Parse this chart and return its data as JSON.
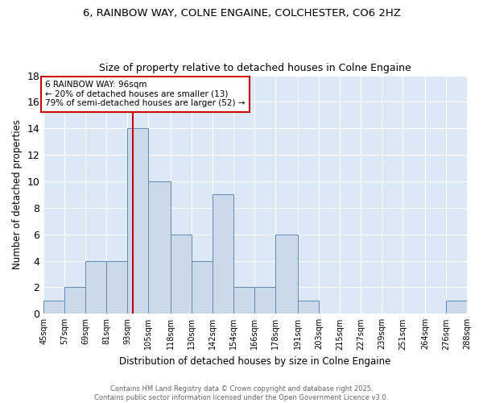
{
  "title1": "6, RAINBOW WAY, COLNE ENGAINE, COLCHESTER, CO6 2HZ",
  "title2": "Size of property relative to detached houses in Colne Engaine",
  "xlabel": "Distribution of detached houses by size in Colne Engaine",
  "ylabel": "Number of detached properties",
  "bins": [
    45,
    57,
    69,
    81,
    93,
    105,
    118,
    130,
    142,
    154,
    166,
    178,
    191,
    203,
    215,
    227,
    239,
    251,
    264,
    276,
    288
  ],
  "counts": [
    1,
    2,
    4,
    4,
    14,
    10,
    6,
    4,
    9,
    2,
    2,
    6,
    1,
    0,
    0,
    0,
    0,
    0,
    0,
    1
  ],
  "bar_color": "#ccd9ea",
  "bar_edge_color": "#5b8db8",
  "red_line_x": 96,
  "annotation_line1": "6 RAINBOW WAY: 96sqm",
  "annotation_line2": "← 20% of detached houses are smaller (13)",
  "annotation_line3": "79% of semi-detached houses are larger (52) →",
  "annotation_box_color": "#ffffff",
  "annotation_box_edge": "#cc0000",
  "bg_color": "#dce8f5",
  "ylim": [
    0,
    18
  ],
  "yticks": [
    0,
    2,
    4,
    6,
    8,
    10,
    12,
    14,
    16,
    18
  ],
  "footer1": "Contains HM Land Registry data © Crown copyright and database right 2025.",
  "footer2": "Contains public sector information licensed under the Open Government Licence v3.0.",
  "grid_color": "#ffffff"
}
